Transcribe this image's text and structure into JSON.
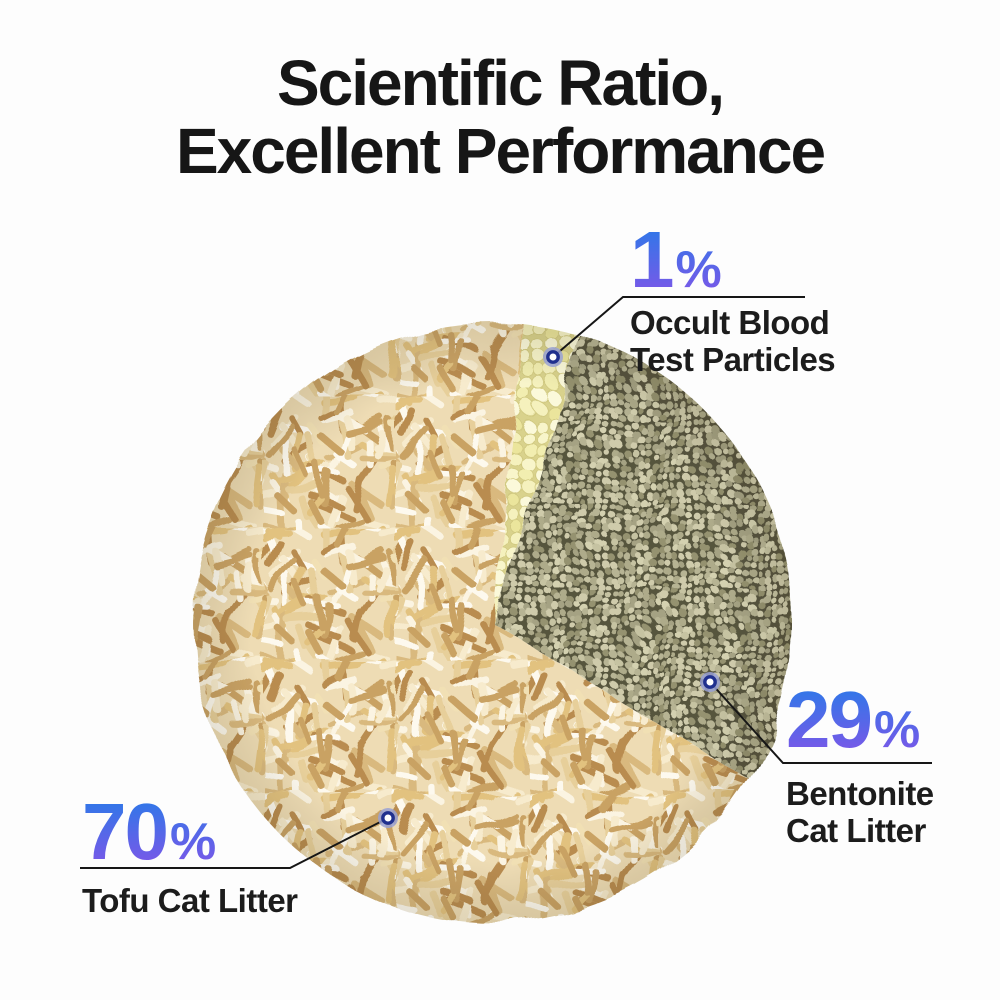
{
  "title": {
    "line1": "Scientific Ratio,",
    "line2": "Excellent Performance"
  },
  "ui": {
    "percent_sign": "%"
  },
  "labels": {
    "occult": {
      "value": "1",
      "line1": "Occult Blood",
      "line2": "Test Particles"
    },
    "bentonite": {
      "value": "29",
      "line1": "Bentonite",
      "line2": "Cat Litter"
    },
    "tofu": {
      "value": "70",
      "line1": "Tofu Cat Litter",
      "line2": ""
    }
  },
  "chart_data": {
    "type": "pie",
    "title": "Scientific Ratio, Excellent Performance",
    "legend_position": "callouts",
    "slices": [
      {
        "key": "tofu",
        "label": "Tofu Cat Litter",
        "value": 70,
        "unit": "%",
        "swatch": "#eedcb4",
        "texture": "cream tofu litter sticks"
      },
      {
        "key": "bentonite",
        "label": "Bentonite Cat Litter",
        "value": 29,
        "unit": "%",
        "swatch": "#aaa789",
        "texture": "khaki bentonite granules"
      },
      {
        "key": "occult",
        "label": "Occult Blood Test Particles",
        "value": 1,
        "unit": "%",
        "swatch": "#f2eeb0",
        "texture": "pale yellow round particles"
      }
    ]
  },
  "colors": {
    "accent_gradient_top": "#2e78e8",
    "accent_gradient_bottom": "#7a58e8",
    "heading_text": "#161616",
    "label_text": "#1c1c1c",
    "connector_line": "#161616",
    "marker_ring": "#20308e",
    "marker_halo": "#99a1d4"
  }
}
